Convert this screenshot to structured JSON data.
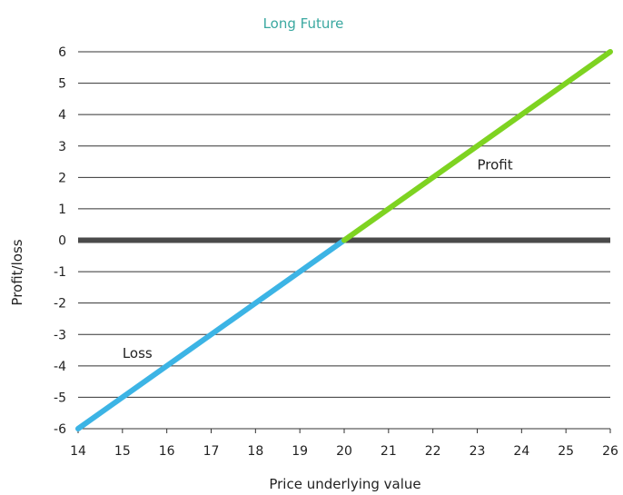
{
  "chart_data": {
    "type": "line",
    "title": "Long Future",
    "xlabel": "Price underlying value",
    "ylabel": "Profit/loss",
    "xlim": [
      14,
      26
    ],
    "ylim": [
      -6,
      6
    ],
    "x_ticks": [
      14,
      15,
      16,
      17,
      18,
      19,
      20,
      21,
      22,
      23,
      24,
      25,
      26
    ],
    "y_ticks": [
      6,
      5,
      4,
      3,
      2,
      1,
      0,
      -1,
      -2,
      -3,
      -4,
      -5,
      -6
    ],
    "grid": "horizontal",
    "series": [
      {
        "x": [
          14,
          20
        ],
        "y": [
          -6,
          0
        ],
        "color": "#3cb4e5"
      },
      {
        "x": [
          20,
          26
        ],
        "y": [
          0,
          6
        ],
        "color": "#7ed321"
      }
    ],
    "zero_line": {
      "value": 0,
      "color": "#4a4a4a"
    },
    "annotations": [
      {
        "text": "Profit",
        "x": 23,
        "y": 2.4
      },
      {
        "text": "Loss",
        "x": 15,
        "y": -3.6
      }
    ],
    "colors": {
      "title": "#3aa8a0",
      "grid": "#333333",
      "text": "#222222"
    }
  }
}
